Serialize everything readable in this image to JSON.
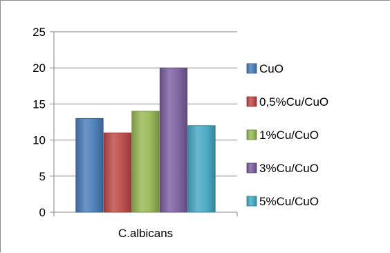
{
  "chart_data": {
    "type": "bar",
    "categories": [
      "C.albicans"
    ],
    "series": [
      {
        "name": "CuO",
        "values": [
          13
        ],
        "color": "#4A7EBB"
      },
      {
        "name": "0,5%Cu/CuO",
        "values": [
          11
        ],
        "color": "#BE4B48"
      },
      {
        "name": "1%Cu/CuO",
        "values": [
          14
        ],
        "color": "#98B954"
      },
      {
        "name": "3%Cu/CuO",
        "values": [
          20
        ],
        "color": "#7D60A0"
      },
      {
        "name": "5%Cu/CuO",
        "values": [
          12
        ],
        "color": "#46AAC5"
      }
    ],
    "ylim": [
      0,
      25
    ],
    "yticks": [
      0,
      5,
      10,
      15,
      20,
      25
    ],
    "grid": true,
    "legend_position": "right",
    "title": "",
    "xlabel": "",
    "ylabel": ""
  }
}
